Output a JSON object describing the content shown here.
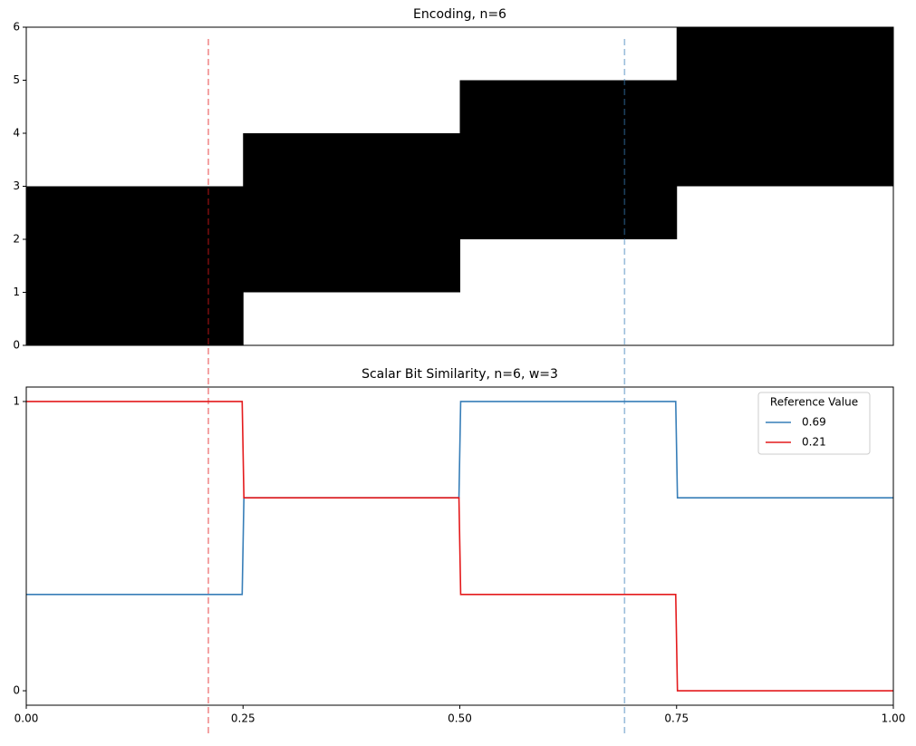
{
  "chart_data": [
    {
      "type": "range-bar",
      "title": "Encoding, n=6",
      "bins": [
        0,
        0.25,
        0.5,
        0.75,
        1
      ],
      "low": [
        0,
        1,
        2,
        3
      ],
      "high": [
        3,
        4,
        5,
        6
      ],
      "color": "#000000",
      "xlim": [
        0,
        1
      ],
      "ylim": [
        0,
        6
      ],
      "yticks": [
        0,
        1,
        2,
        3,
        4,
        5,
        6
      ]
    },
    {
      "type": "line",
      "title": "Scalar Bit Similarity, n=6, w=3",
      "x": [
        0,
        0.249,
        0.251,
        0.499,
        0.501,
        0.749,
        0.751,
        1
      ],
      "series": [
        {
          "name": "0.69",
          "color": "#377eb8",
          "values": [
            0.333,
            0.333,
            0.667,
            0.667,
            1,
            1,
            0.667,
            0.667
          ]
        },
        {
          "name": "0.21",
          "color": "#e41a1c",
          "values": [
            1,
            1,
            0.667,
            0.667,
            0.333,
            0.333,
            0,
            0
          ]
        }
      ],
      "xlim": [
        0,
        1
      ],
      "ylim": [
        -0.05,
        1.05
      ],
      "yticks": [
        0,
        1
      ],
      "xticks": [
        {
          "value": 0,
          "label": "0.00"
        },
        {
          "value": 0.25,
          "label": "0.25"
        },
        {
          "value": 0.5,
          "label": "0.50"
        },
        {
          "value": 0.75,
          "label": "0.75"
        },
        {
          "value": 1,
          "label": "1.00"
        }
      ],
      "legend_title": "Reference Value",
      "legend": "upper right",
      "reference_lines": [
        {
          "x": 0.21,
          "color": "#e41a1c"
        },
        {
          "x": 0.69,
          "color": "#377eb8"
        }
      ]
    }
  ]
}
